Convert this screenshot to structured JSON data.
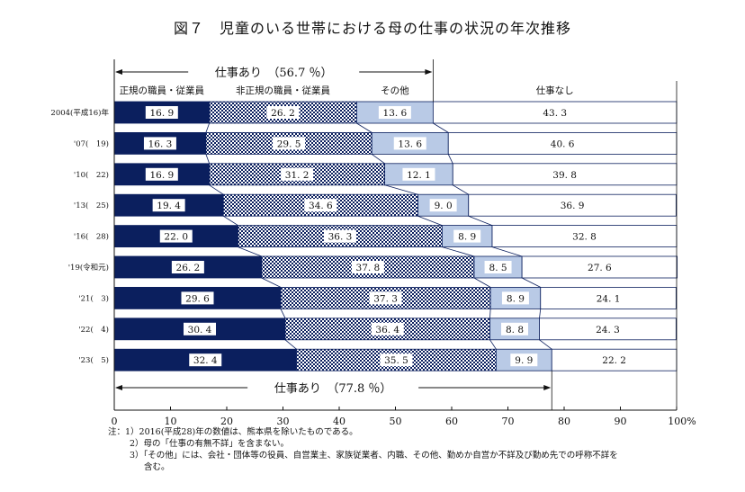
{
  "chart_data": {
    "type": "bar",
    "orientation": "horizontal",
    "stacked": true,
    "title": "図７　児童のいる世帯における母の仕事の状況の年次推移",
    "categories": [
      "2004(平成16)年",
      "'07(　19)",
      "'10(　22)",
      "'13(　25)",
      "'16(　28)",
      "'19(令和元)",
      "'21(　3)",
      "'22(　4)",
      "'23(　5)"
    ],
    "series": [
      {
        "name": "正規の職員・従業員",
        "values": [
          16.9,
          16.3,
          16.9,
          19.4,
          22.0,
          26.2,
          29.6,
          30.4,
          32.4
        ],
        "color": "#0b1f5e",
        "pattern": "solid"
      },
      {
        "name": "非正規の職員・従業員",
        "values": [
          26.2,
          29.5,
          31.2,
          34.6,
          36.3,
          37.8,
          37.3,
          36.4,
          35.5
        ],
        "color": "#0b1f5e",
        "pattern": "checker"
      },
      {
        "name": "その他",
        "values": [
          13.6,
          13.6,
          12.1,
          9.0,
          8.9,
          8.5,
          8.9,
          8.8,
          9.9
        ],
        "color": "#b9cae6",
        "pattern": "solid"
      },
      {
        "name": "仕事なし",
        "values": [
          43.3,
          40.6,
          39.8,
          36.9,
          32.8,
          27.6,
          24.1,
          24.3,
          22.2
        ],
        "color": "#ffffff",
        "pattern": "solid"
      }
    ],
    "xlim": [
      0,
      100
    ],
    "xticks": [
      "0",
      "10",
      "20",
      "30",
      "40",
      "50",
      "60",
      "70",
      "80",
      "90",
      "100%"
    ],
    "annotations": {
      "top_bracket": "仕事あり　（56.7 ％）",
      "bottom_bracket": "仕事あり　（77.8 ％）"
    },
    "grid": false,
    "legend": "top (labels above bars)"
  },
  "notes": [
    "注：1）2016(平成28)年の数値は、熊本県を除いたものである。",
    "2）母の「仕事の有無不詳」を含まない。",
    "3）「その他」には、会社・団体等の役員、自営業主、家族従業者、内職、その他、勤めか自営か不詳及び勤め先での呼称不詳を",
    "含む。"
  ]
}
